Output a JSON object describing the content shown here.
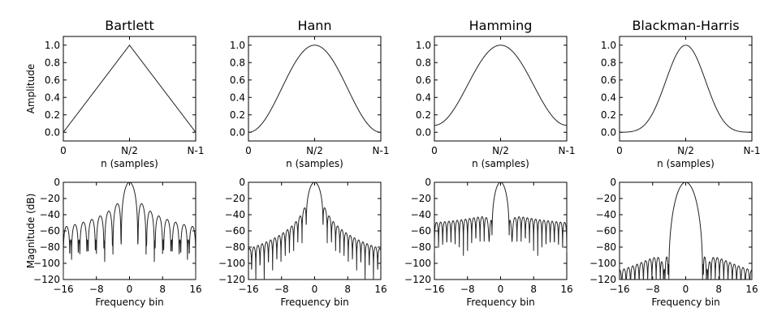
{
  "chart_data": [
    {
      "type": "line",
      "window": "bartlett",
      "title": "Bartlett",
      "xlabel": "n (samples)",
      "ylabel": "Amplitude",
      "xticks": [
        "0",
        "N/2",
        "N-1"
      ],
      "yticks": [
        "0.0",
        "0.2",
        "0.4",
        "0.6",
        "0.8",
        "1.0"
      ],
      "ylim": [
        -0.1,
        1.1
      ],
      "x": [
        0,
        0.5,
        1
      ],
      "y": [
        0,
        1,
        0
      ]
    },
    {
      "type": "line",
      "window": "hann",
      "title": "Hann",
      "xlabel": "n (samples)",
      "ylabel": "",
      "xticks": [
        "0",
        "N/2",
        "N-1"
      ],
      "yticks": [
        "0.0",
        "0.2",
        "0.4",
        "0.6",
        "0.8",
        "1.0"
      ],
      "ylim": [
        -0.1,
        1.1
      ],
      "x": [
        0,
        0.5,
        1
      ],
      "y": [
        0,
        1,
        0
      ]
    },
    {
      "type": "line",
      "window": "hamming",
      "title": "Hamming",
      "xlabel": "n (samples)",
      "ylabel": "",
      "xticks": [
        "0",
        "N/2",
        "N-1"
      ],
      "yticks": [
        "0.0",
        "0.2",
        "0.4",
        "0.6",
        "0.8",
        "1.0"
      ],
      "ylim": [
        -0.1,
        1.1
      ],
      "x": [
        0,
        0.5,
        1
      ],
      "y": [
        0.08,
        1,
        0.08
      ]
    },
    {
      "type": "line",
      "window": "blackmanharris",
      "title": "Blackman-Harris",
      "xlabel": "n (samples)",
      "ylabel": "",
      "xticks": [
        "0",
        "N/2",
        "N-1"
      ],
      "yticks": [
        "0.0",
        "0.2",
        "0.4",
        "0.6",
        "0.8",
        "1.0"
      ],
      "ylim": [
        -0.1,
        1.1
      ],
      "x": [
        0,
        0.5,
        1
      ],
      "y": [
        0,
        1,
        0
      ]
    },
    {
      "type": "line",
      "window": "bartlett",
      "title": "",
      "xlabel": "Frequency bin",
      "ylabel": "Magnitude (dB)",
      "xticks": [
        "−16",
        "−8",
        "0",
        "8",
        "16"
      ],
      "yticks": [
        "0",
        "−20",
        "−40",
        "−60",
        "−80",
        "−100",
        "−120"
      ],
      "xlim": [
        -16,
        16
      ],
      "ylim": [
        -120,
        0
      ],
      "mainlobe_halfwidth_bins": 2,
      "sidelobe_peak_db": -26,
      "sidelobe_floor_db": -106
    },
    {
      "type": "line",
      "window": "hann",
      "title": "",
      "xlabel": "Frequency bin",
      "ylabel": "",
      "xticks": [
        "−16",
        "−8",
        "0",
        "8",
        "16"
      ],
      "yticks": [
        "0",
        "−20",
        "−40",
        "−60",
        "−80",
        "−100",
        "−120"
      ],
      "xlim": [
        -16,
        16
      ],
      "ylim": [
        -120,
        0
      ],
      "mainlobe_halfwidth_bins": 2,
      "sidelobe_peak_db": -31,
      "sidelobe_floor_db": -95
    },
    {
      "type": "line",
      "window": "hamming",
      "title": "",
      "xlabel": "Frequency bin",
      "ylabel": "",
      "xticks": [
        "−16",
        "−8",
        "0",
        "8",
        "16"
      ],
      "yticks": [
        "0",
        "−20",
        "−40",
        "−60",
        "−80",
        "−100",
        "−120"
      ],
      "xlim": [
        -16,
        16
      ],
      "ylim": [
        -120,
        0
      ],
      "mainlobe_halfwidth_bins": 2,
      "sidelobe_peak_db": -43,
      "sidelobe_floor_db": -90
    },
    {
      "type": "line",
      "window": "blackmanharris",
      "title": "",
      "xlabel": "Frequency bin",
      "ylabel": "",
      "xticks": [
        "−16",
        "−8",
        "0",
        "8",
        "16"
      ],
      "yticks": [
        "0",
        "−20",
        "−40",
        "−60",
        "−80",
        "−100",
        "−120"
      ],
      "xlim": [
        -16,
        16
      ],
      "ylim": [
        -120,
        0
      ],
      "mainlobe_halfwidth_bins": 4,
      "sidelobe_peak_db": -92,
      "sidelobe_floor_db": -120
    }
  ]
}
